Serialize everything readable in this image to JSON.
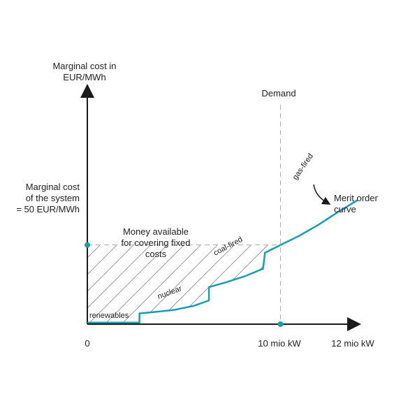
{
  "colors": {
    "curve": "#1a9cb0",
    "axis": "#1a1a1a",
    "dashed": "#aaaaaa",
    "hatch": "#888888"
  },
  "labels": {
    "yaxis_line1": "Marginal cost in",
    "yaxis_line2": "EUR/MWh",
    "demand": "Demand",
    "marginal_line1": "Marginal cost",
    "marginal_line2": "of the system",
    "marginal_line3": "= 50 EUR/MWh",
    "money_line1": "Money available",
    "money_line2": "for covering fixed",
    "money_line3": "costs",
    "merit_line1": "Merit order",
    "merit_line2": "curve",
    "tick_zero": "0",
    "tick_demand": "10 mio kW",
    "tick_max": "12 mio kW"
  },
  "chart_data": {
    "type": "line",
    "x_unit": "mio kW",
    "y_unit": "EUR/MWh",
    "xlim": [
      0,
      14
    ],
    "ylim": [
      0,
      120
    ],
    "demand_x": 10,
    "marginal_cost_y": 50,
    "segments": [
      {
        "name": "renewables",
        "x_start": 0,
        "x_end": 2.7
      },
      {
        "name": "nuclear",
        "x_start": 2.7,
        "x_end": 6.3
      },
      {
        "name": "coal-fired",
        "x_start": 6.3,
        "x_end": 9.1
      },
      {
        "name": "gas-fired",
        "x_start": 9.1,
        "x_end": 14.0
      }
    ],
    "curve": [
      [
        0,
        1
      ],
      [
        2.7,
        1
      ],
      [
        2.7,
        6.8
      ],
      [
        3.5,
        7.7
      ],
      [
        4.5,
        9
      ],
      [
        5.5,
        11.5
      ],
      [
        6.3,
        15
      ],
      [
        6.3,
        23.4
      ],
      [
        7.2,
        26.5
      ],
      [
        8.2,
        30.5
      ],
      [
        9.1,
        35
      ],
      [
        9.2,
        45.1
      ],
      [
        10,
        50
      ],
      [
        11,
        56
      ],
      [
        12,
        63
      ],
      [
        13,
        71
      ],
      [
        14,
        78.4
      ]
    ]
  }
}
